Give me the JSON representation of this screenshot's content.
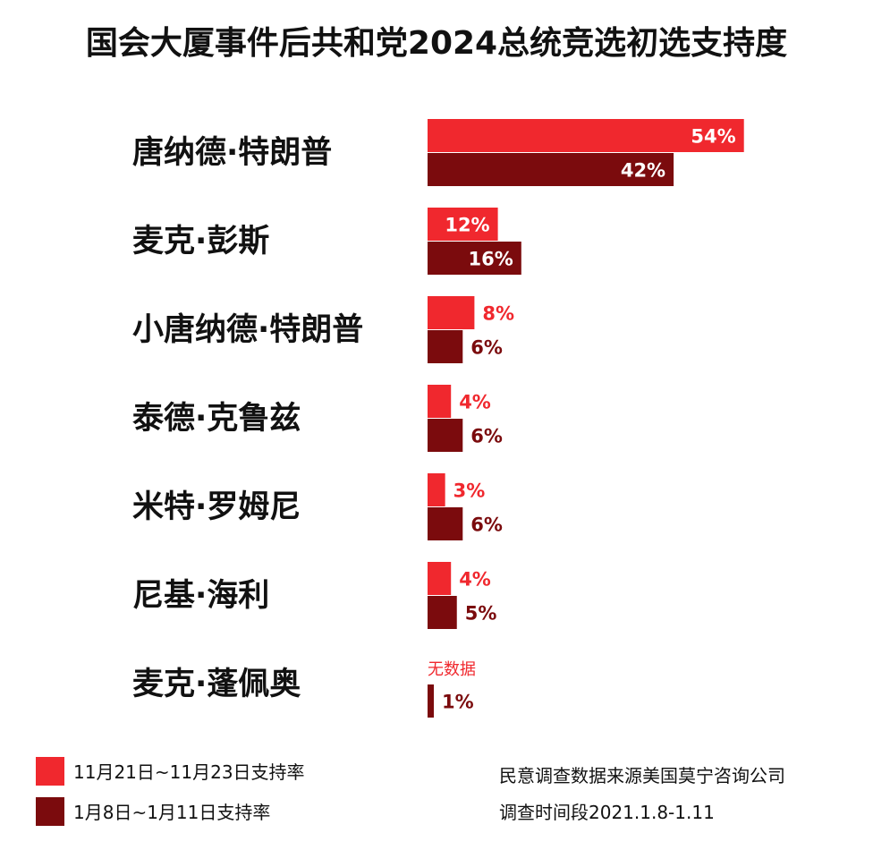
{
  "chart_data": {
    "type": "bar",
    "orientation": "horizontal",
    "title": "国会大厦事件后共和党2024总统竞选初选支持度",
    "categories": [
      "唐纳德·特朗普",
      "麦克·彭斯",
      "小唐纳德·特朗普",
      "泰德·克鲁兹",
      "米特·罗姆尼",
      "尼基·海利",
      "麦克·蓬佩奥"
    ],
    "series": [
      {
        "name": "11月21日~11月23日支持率",
        "color": "#f0282e",
        "values": [
          54,
          12,
          8,
          4,
          3,
          4,
          null
        ],
        "labels": [
          "54%",
          "12%",
          "8%",
          "4%",
          "3%",
          "4%",
          "无数据"
        ]
      },
      {
        "name": "1月8日~1月11日支持率",
        "color": "#7b0b0d",
        "values": [
          42,
          16,
          6,
          6,
          6,
          5,
          1
        ],
        "labels": [
          "42%",
          "16%",
          "6%",
          "6%",
          "6%",
          "5%",
          "1%"
        ]
      }
    ],
    "xlim": [
      0,
      100
    ],
    "grid": false,
    "legend": "bottom-left",
    "notes": [
      "民意调查数据来源美国莫宁咨询公司",
      "调查时间段2021.1.8-1.11"
    ]
  }
}
